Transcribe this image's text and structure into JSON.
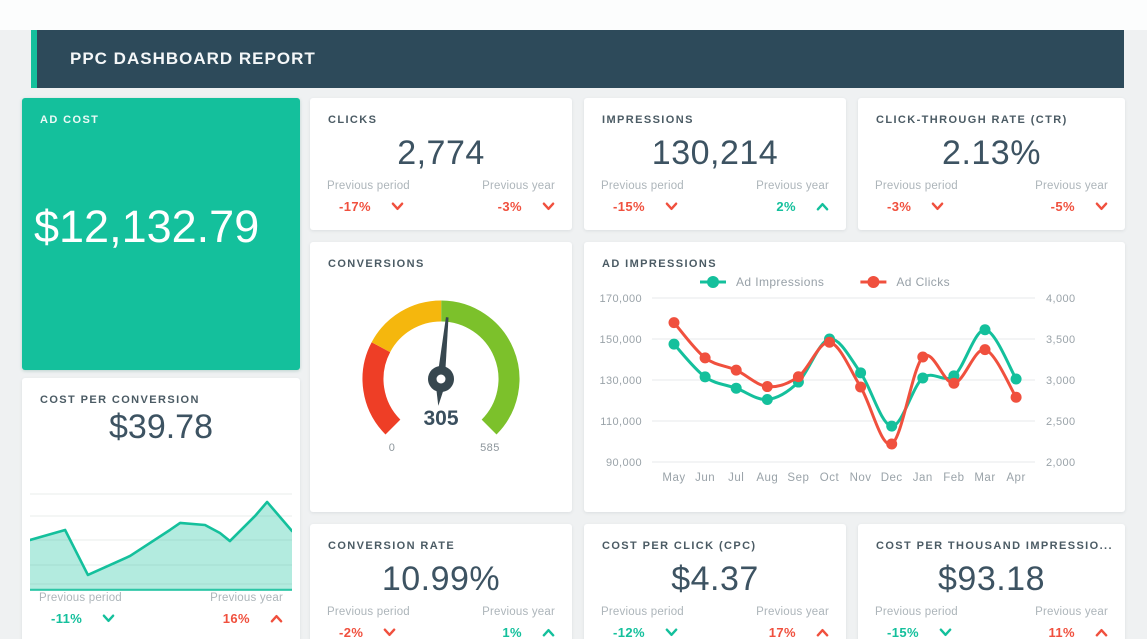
{
  "header": {
    "title": "PPC DASHBOARD REPORT"
  },
  "labels": {
    "previous_period": "Previous period",
    "previous_year": "Previous year"
  },
  "colors": {
    "teal": "#14c09c",
    "red": "#f0503e",
    "navy": "#3d5362",
    "header_bg": "#2d4a5a"
  },
  "cards": {
    "ad_cost": {
      "title": "AD COST",
      "value": "$12,132.79"
    },
    "clicks": {
      "title": "CLICKS",
      "value": "2,774",
      "prev_period": {
        "value": "-17%",
        "dir": "down",
        "tone": "bad"
      },
      "prev_year": {
        "value": "-3%",
        "dir": "down",
        "tone": "bad"
      }
    },
    "impressions": {
      "title": "IMPRESSIONS",
      "value": "130,214",
      "prev_period": {
        "value": "-15%",
        "dir": "down",
        "tone": "bad"
      },
      "prev_year": {
        "value": "2%",
        "dir": "up",
        "tone": "good"
      }
    },
    "ctr": {
      "title": "CLICK-THROUGH RATE (CTR)",
      "value": "2.13%",
      "prev_period": {
        "value": "-3%",
        "dir": "down",
        "tone": "bad"
      },
      "prev_year": {
        "value": "-5%",
        "dir": "down",
        "tone": "bad"
      }
    },
    "conversions": {
      "title": "CONVERSIONS"
    },
    "ad_impressions": {
      "title": "AD IMPRESSIONS"
    },
    "cost_per_conversion": {
      "title": "COST PER CONVERSION",
      "value": "$39.78",
      "prev_period": {
        "value": "-11%",
        "dir": "down",
        "tone": "good"
      },
      "prev_year": {
        "value": "16%",
        "dir": "up",
        "tone": "bad"
      }
    },
    "conversion_rate": {
      "title": "CONVERSION RATE",
      "value": "10.99%",
      "prev_period": {
        "value": "-2%",
        "dir": "down",
        "tone": "bad"
      },
      "prev_year": {
        "value": "1%",
        "dir": "up",
        "tone": "good"
      }
    },
    "cpc": {
      "title": "COST PER CLICK (CPC)",
      "value": "$4.37",
      "prev_period": {
        "value": "-12%",
        "dir": "down",
        "tone": "good"
      },
      "prev_year": {
        "value": "17%",
        "dir": "up",
        "tone": "bad"
      }
    },
    "cpm": {
      "title": "COST PER THOUSAND IMPRESSIO...",
      "value": "$93.18",
      "prev_period": {
        "value": "-15%",
        "dir": "down",
        "tone": "good"
      },
      "prev_year": {
        "value": "11%",
        "dir": "up",
        "tone": "bad"
      }
    }
  },
  "chart_data": [
    {
      "type": "gauge",
      "title": "CONVERSIONS",
      "value": 305,
      "min": 0,
      "max": 585,
      "min_label": "0",
      "max_label": "585",
      "value_label": "305",
      "segments": [
        {
          "color": "#ee3e26",
          "from": 0,
          "to": 158
        },
        {
          "color": "#f5b70d",
          "from": 158,
          "to": 293
        },
        {
          "color": "#7cc12b",
          "from": 293,
          "to": 585
        }
      ],
      "needle_color": "#37474f"
    },
    {
      "type": "line",
      "title": "AD IMPRESSIONS",
      "categories": [
        "May",
        "Jun",
        "Jul",
        "Aug",
        "Sep",
        "Oct",
        "Nov",
        "Dec",
        "Jan",
        "Feb",
        "Mar",
        "Apr"
      ],
      "series": [
        {
          "name": "Ad Impressions",
          "color": "#14c09c",
          "axis": "left",
          "values": [
            147500,
            131500,
            126000,
            120500,
            129000,
            150000,
            133500,
            107500,
            131000,
            132000,
            154500,
            130500
          ]
        },
        {
          "name": "Ad Clicks",
          "color": "#f0503e",
          "axis": "right",
          "values": [
            3700,
            3270,
            3120,
            2920,
            3040,
            3460,
            2915,
            2220,
            3280,
            2960,
            3370,
            2790
          ]
        }
      ],
      "left_axis": {
        "min": 90000,
        "max": 170000,
        "ticks": [
          "90,000",
          "110,000",
          "130,000",
          "150,000",
          "170,000"
        ]
      },
      "right_axis": {
        "min": 2000,
        "max": 4000,
        "ticks": [
          "2,000",
          "2,500",
          "3,000",
          "3,500",
          "4,000"
        ]
      },
      "grid": true,
      "legend_position": "top"
    },
    {
      "type": "area",
      "title": "COST PER CONVERSION",
      "color": "#14c09c",
      "points": [
        {
          "x": 0.0,
          "y": 0.451
        },
        {
          "x": 0.134,
          "y": 0.54
        },
        {
          "x": 0.221,
          "y": 0.142
        },
        {
          "x": 0.382,
          "y": 0.31
        },
        {
          "x": 0.534,
          "y": 0.54
        },
        {
          "x": 0.573,
          "y": 0.602
        },
        {
          "x": 0.668,
          "y": 0.584
        },
        {
          "x": 0.725,
          "y": 0.513
        },
        {
          "x": 0.763,
          "y": 0.442
        },
        {
          "x": 0.859,
          "y": 0.664
        },
        {
          "x": 0.905,
          "y": 0.788
        },
        {
          "x": 1.0,
          "y": 0.531
        }
      ]
    }
  ]
}
